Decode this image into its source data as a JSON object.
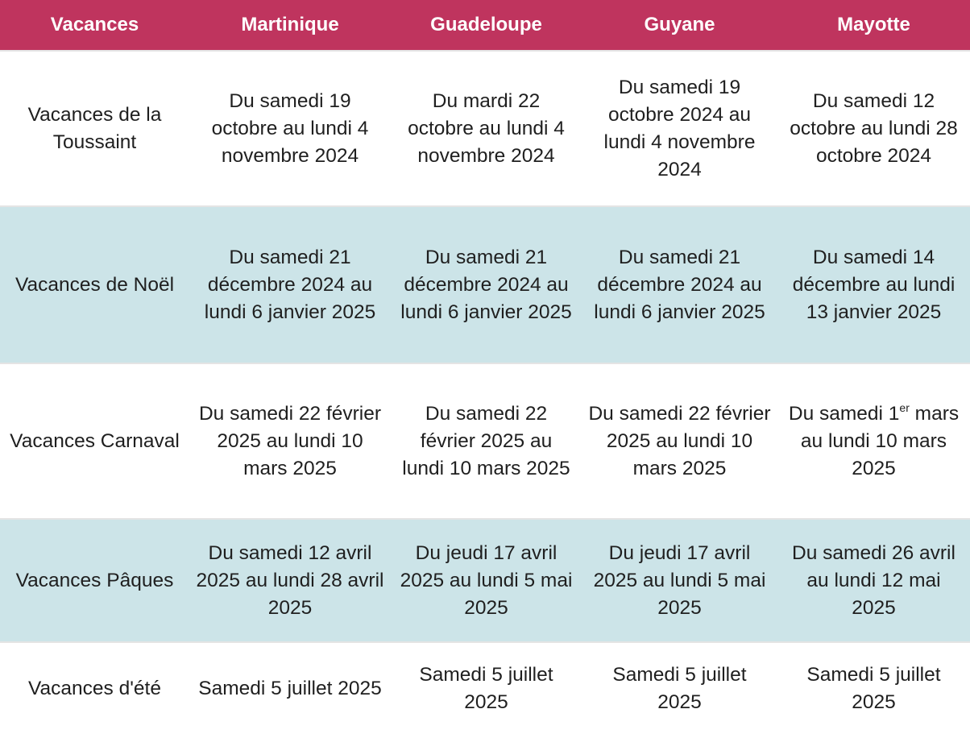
{
  "header": {
    "col0": "Vacances",
    "col1": "Martinique",
    "col2": "Guadeloupe",
    "col3": "Guyane",
    "col4": "Mayotte"
  },
  "rows": [
    {
      "label": "Vacances de la Toussaint",
      "martinique": "Du samedi 19 octobre au lundi 4 novembre 2024",
      "guadeloupe": "Du mardi 22 octobre au lundi 4 novembre 2024",
      "guyane": "Du samedi 19 octobre 2024 au lundi 4 novembre 2024",
      "mayotte": "Du samedi 12 octobre au lundi 28 octobre 2024"
    },
    {
      "label": "Vacances de Noël",
      "martinique": "Du samedi 21 décembre 2024 au lundi 6 janvier 2025",
      "guadeloupe": "Du samedi 21 décembre 2024 au lundi 6 janvier 2025",
      "guyane": "Du samedi 21 décembre 2024 au lundi 6 janvier 2025",
      "mayotte": "Du samedi 14 décembre au lundi 13 janvier 2025"
    },
    {
      "label": "Vacances Carnaval",
      "martinique": "Du samedi 22 février 2025 au lundi 10 mars 2025",
      "guadeloupe": "Du samedi 22 février 2025 au lundi 10 mars 2025",
      "guyane": "Du samedi 22 février 2025 au lundi 10 mars 2025",
      "mayotte_prefix": "Du samedi 1",
      "mayotte_sup": "er",
      "mayotte_suffix": " mars au lundi 10 mars 2025"
    },
    {
      "label": "Vacances Pâques",
      "martinique": "Du samedi 12 avril 2025 au lundi 28 avril 2025",
      "guadeloupe": "Du jeudi 17 avril 2025 au lundi 5 mai 2025",
      "guyane": "Du jeudi 17 avril 2025 au lundi 5 mai 2025",
      "mayotte": "Du samedi 26 avril au lundi 12 mai 2025"
    },
    {
      "label": "Vacances d'été",
      "martinique": "Samedi 5 juillet 2025",
      "guadeloupe": "Samedi 5 juillet 2025",
      "guyane": "Samedi 5 juillet 2025",
      "mayotte": "Samedi 5 juillet 2025"
    }
  ],
  "colors": {
    "header_bg": "#bf345e",
    "header_text": "#ffffff",
    "alt_row_bg": "#cce4e8",
    "row_bg": "#ffffff"
  }
}
